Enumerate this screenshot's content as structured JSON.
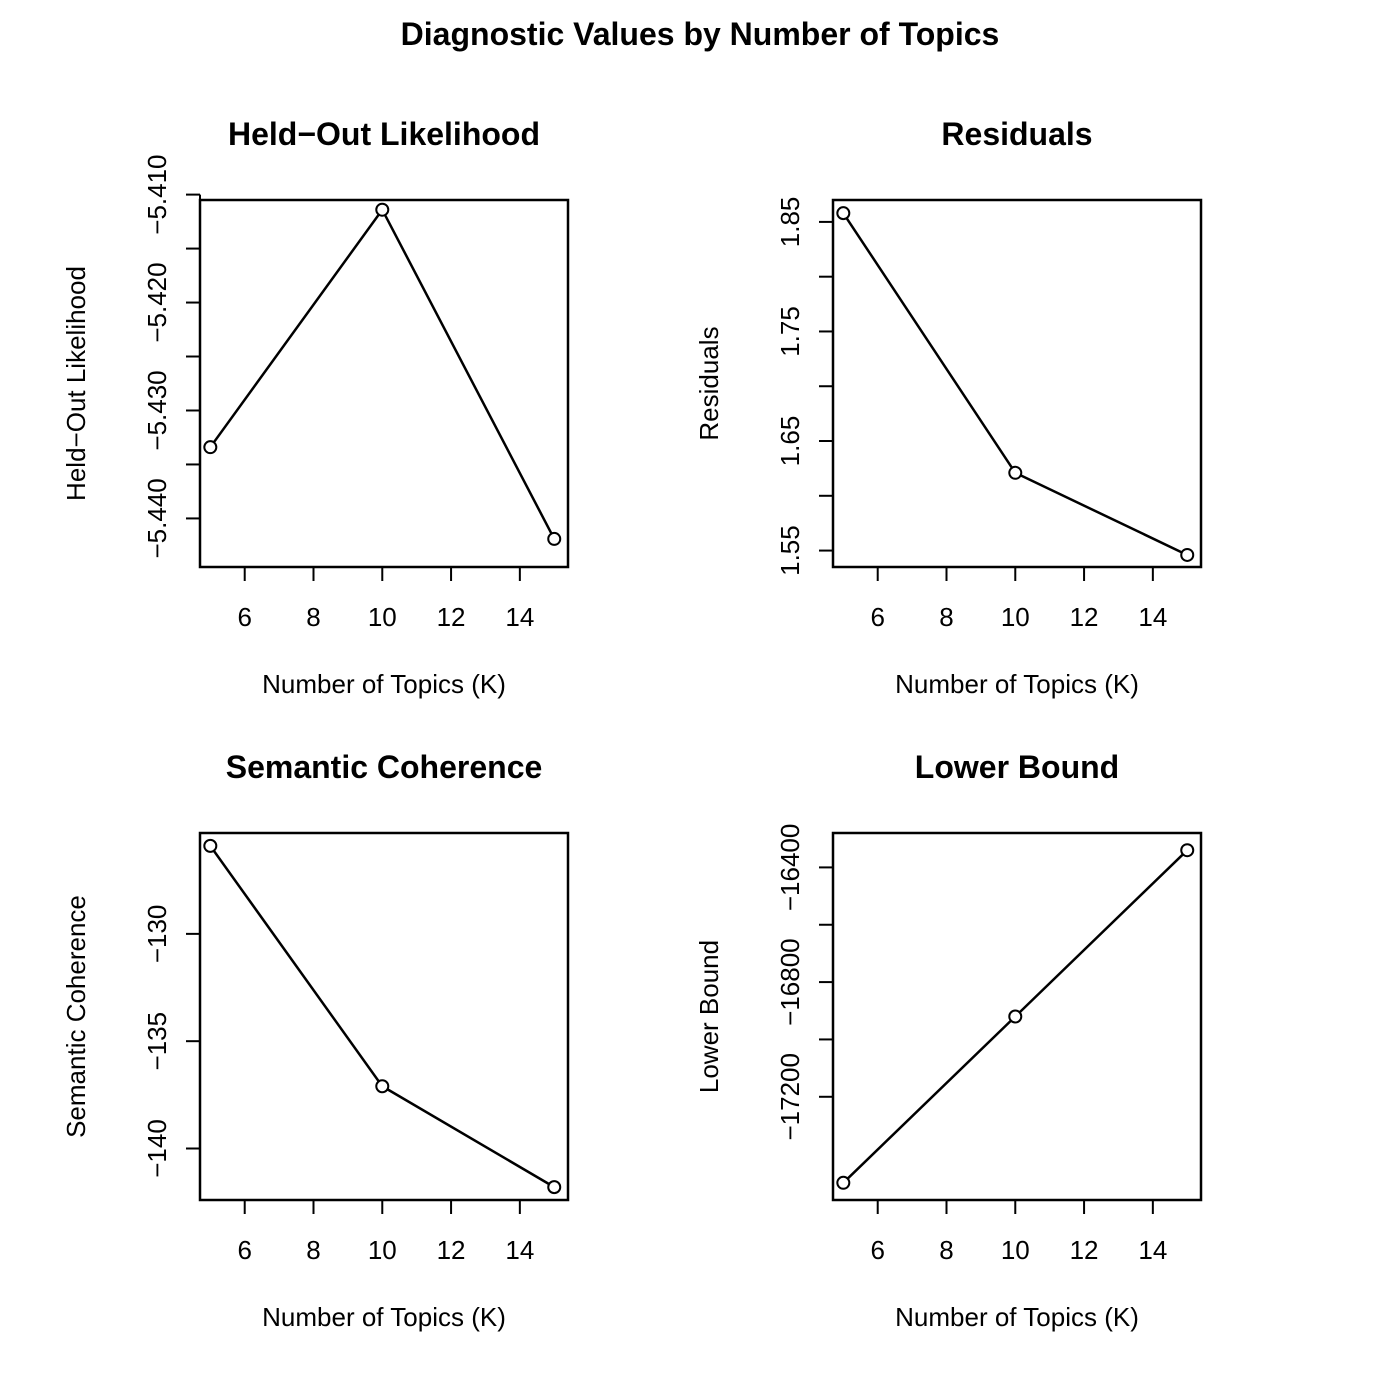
{
  "figure": {
    "title": "Diagnostic Values by Number of Topics"
  },
  "chart_data": [
    {
      "type": "line",
      "title": "Held−Out Likelihood",
      "xlabel": "Number of Topics (K)",
      "ylabel": "Held−Out Likelihood",
      "x": [
        5,
        10,
        15
      ],
      "series": [
        {
          "values": [
            -5.4334,
            -5.4114,
            -5.4419
          ]
        }
      ],
      "xlim": [
        4.7,
        15.4
      ],
      "ylim": [
        -5.4445,
        -5.4105
      ],
      "xticks": [
        6,
        8,
        10,
        12,
        14
      ],
      "xtick_labels": [
        "6",
        "8",
        "10",
        "12",
        "14"
      ],
      "yticks": [
        -5.44,
        -5.435,
        -5.43,
        -5.425,
        -5.42,
        -5.415,
        -5.41
      ],
      "ytick_labels": [
        "−5.440",
        "",
        "−5.430",
        "",
        "−5.420",
        "",
        "−5.410"
      ],
      "grid": false,
      "marker": "open-circle",
      "color": "#000000"
    },
    {
      "type": "line",
      "title": "Residuals",
      "xlabel": "Number of Topics (K)",
      "ylabel": "Residuals",
      "x": [
        5,
        10,
        15
      ],
      "series": [
        {
          "values": [
            1.858,
            1.621,
            1.546
          ]
        }
      ],
      "xlim": [
        4.7,
        15.4
      ],
      "ylim": [
        1.535,
        1.87
      ],
      "xticks": [
        6,
        8,
        10,
        12,
        14
      ],
      "xtick_labels": [
        "6",
        "8",
        "10",
        "12",
        "14"
      ],
      "yticks": [
        1.55,
        1.6,
        1.65,
        1.7,
        1.75,
        1.8,
        1.85
      ],
      "ytick_labels": [
        "1.55",
        "",
        "1.65",
        "",
        "1.75",
        "",
        "1.85"
      ],
      "grid": false,
      "marker": "open-circle",
      "color": "#000000"
    },
    {
      "type": "line",
      "title": "Semantic Coherence",
      "xlabel": "Number of Topics (K)",
      "ylabel": "Semantic Coherence",
      "x": [
        5,
        10,
        15
      ],
      "series": [
        {
          "values": [
            -125.9,
            -137.1,
            -141.8
          ]
        }
      ],
      "xlim": [
        4.7,
        15.4
      ],
      "ylim": [
        -142.4,
        -125.3
      ],
      "xticks": [
        6,
        8,
        10,
        12,
        14
      ],
      "xtick_labels": [
        "6",
        "8",
        "10",
        "12",
        "14"
      ],
      "yticks": [
        -140,
        -135,
        -130
      ],
      "ytick_labels": [
        "−140",
        "−135",
        "−130"
      ],
      "grid": false,
      "marker": "open-circle",
      "color": "#000000"
    },
    {
      "type": "line",
      "title": "Lower Bound",
      "xlabel": "Number of Topics (K)",
      "ylabel": "Lower Bound",
      "x": [
        5,
        10,
        15
      ],
      "series": [
        {
          "values": [
            -17500,
            -16920,
            -16340
          ]
        }
      ],
      "xlim": [
        4.7,
        15.4
      ],
      "ylim": [
        -17560,
        -16280
      ],
      "xticks": [
        6,
        8,
        10,
        12,
        14
      ],
      "xtick_labels": [
        "6",
        "8",
        "10",
        "12",
        "14"
      ],
      "yticks": [
        -17200,
        -17000,
        -16800,
        -16600,
        -16400
      ],
      "ytick_labels": [
        "−17200",
        "",
        "−16800",
        "",
        "−16400"
      ],
      "grid": false,
      "marker": "open-circle",
      "color": "#000000"
    }
  ]
}
